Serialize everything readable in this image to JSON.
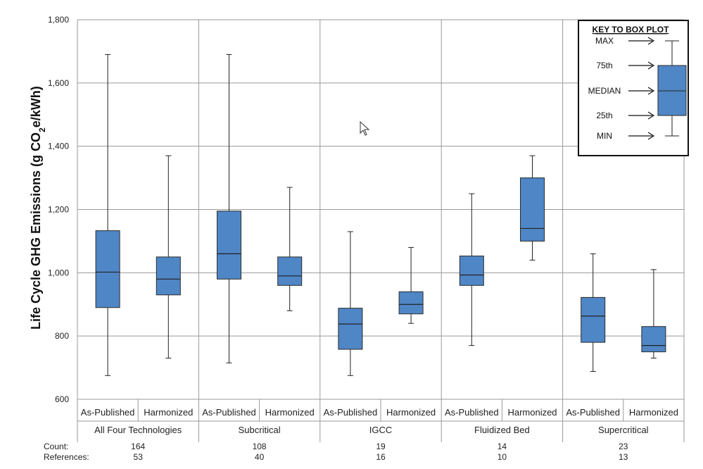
{
  "chart_data": {
    "type": "box",
    "ylabel_main": "Life Cycle GHG Emissions  (g CO",
    "ylabel_sub": "2",
    "ylabel_end": "e/kWh)",
    "ylim": [
      600,
      1800
    ],
    "yticks": [
      600,
      800,
      1000,
      1200,
      1400,
      1600,
      1800
    ],
    "ytick_labels": [
      "600",
      "800",
      "1,000",
      "1,200",
      "1,400",
      "1,600",
      "1,800"
    ],
    "grid": true,
    "series_labels": [
      "As-Published",
      "Harmonized"
    ],
    "groups": [
      {
        "name": "All Four Technologies",
        "count": "164",
        "references": "53",
        "boxes": [
          {
            "label": "As-Published",
            "min": 675,
            "q1": 890,
            "median": 1002,
            "q3": 1133,
            "max": 1690
          },
          {
            "label": "Harmonized",
            "min": 730,
            "q1": 930,
            "median": 980,
            "q3": 1050,
            "max": 1370
          }
        ]
      },
      {
        "name": "Subcritical",
        "count": "108",
        "references": "40",
        "boxes": [
          {
            "label": "As-Published",
            "min": 715,
            "q1": 980,
            "median": 1060,
            "q3": 1195,
            "max": 1690
          },
          {
            "label": "Harmonized",
            "min": 880,
            "q1": 960,
            "median": 990,
            "q3": 1050,
            "max": 1270
          }
        ]
      },
      {
        "name": "IGCC",
        "count": "19",
        "references": "16",
        "boxes": [
          {
            "label": "As-Published",
            "min": 675,
            "q1": 758,
            "median": 838,
            "q3": 888,
            "max": 1130
          },
          {
            "label": "Harmonized",
            "min": 840,
            "q1": 870,
            "median": 900,
            "q3": 940,
            "max": 1080
          }
        ]
      },
      {
        "name": "Fluidized Bed",
        "count": "14",
        "references": "10",
        "boxes": [
          {
            "label": "As-Published",
            "min": 770,
            "q1": 960,
            "median": 993,
            "q3": 1053,
            "max": 1250
          },
          {
            "label": "Harmonized",
            "min": 1040,
            "q1": 1100,
            "median": 1140,
            "q3": 1300,
            "max": 1370
          }
        ]
      },
      {
        "name": "Supercritical",
        "count": "23",
        "references": "13",
        "boxes": [
          {
            "label": "As-Published",
            "min": 688,
            "q1": 780,
            "median": 863,
            "q3": 922,
            "max": 1060
          },
          {
            "label": "Harmonized",
            "min": 730,
            "q1": 750,
            "median": 770,
            "q3": 830,
            "max": 1010
          }
        ]
      }
    ],
    "footer": {
      "count_label": "Count:",
      "references_label": "References:"
    },
    "key": {
      "title": "KEY TO BOX PLOT",
      "labels": [
        "MAX",
        "75th",
        "MEDIAN",
        "25th",
        "MIN"
      ]
    },
    "colors": {
      "box_fill": "#4F86C6",
      "box_stroke": "#2B2B2B",
      "grid": "#9A9A9A"
    }
  }
}
